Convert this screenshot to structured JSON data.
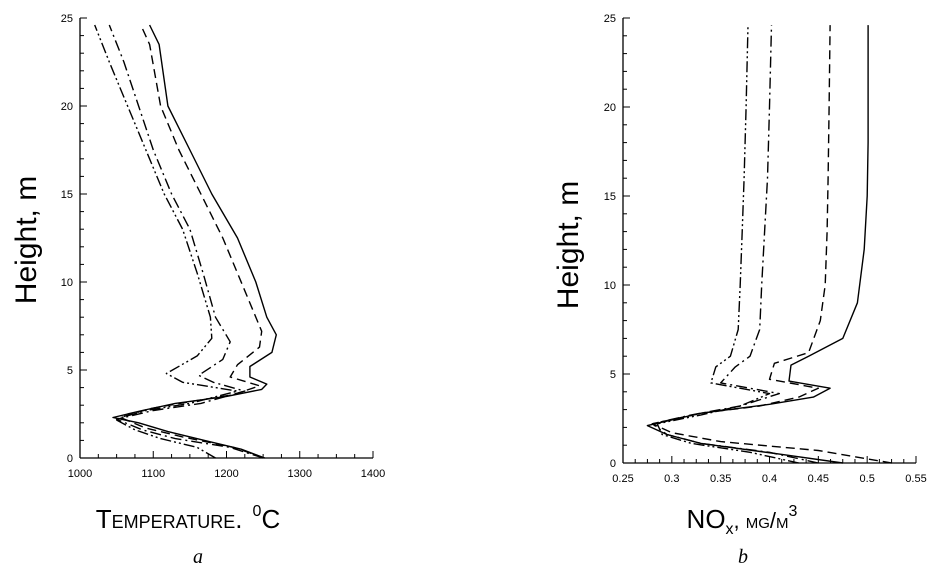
{
  "chart_data": [
    {
      "type": "line",
      "panel_label": "a",
      "xlabel": "Temperature. ⁰C",
      "xlabel_main": "Temperature.",
      "xlabel_sup": "0",
      "xlabel_unit": "C",
      "ylabel": "Height, m",
      "xlim": [
        1000,
        1400
      ],
      "ylim": [
        0,
        25
      ],
      "xticks": [
        1000,
        1100,
        1200,
        1300,
        1400
      ],
      "yticks": [
        0,
        5,
        10,
        15,
        20,
        25
      ],
      "grid": false,
      "series": [
        {
          "style": "solid",
          "color": "#000000",
          "x": [
            1252,
            1220,
            1170,
            1120,
            1080,
            1045,
            1085,
            1130,
            1200,
            1248,
            1255,
            1232,
            1232,
            1262,
            1268,
            1255,
            1240,
            1215,
            1180,
            1150,
            1120,
            1108,
            1095
          ],
          "y": [
            0,
            0.5,
            1.0,
            1.5,
            2.0,
            2.3,
            2.7,
            3.1,
            3.5,
            3.9,
            4.2,
            4.6,
            5.2,
            6.0,
            7.0,
            8.0,
            10.0,
            12.5,
            15.0,
            17.5,
            20.0,
            23.5,
            24.6
          ]
        },
        {
          "style": "dashed",
          "color": "#000000",
          "x": [
            1252,
            1210,
            1140,
            1090,
            1055,
            1095,
            1150,
            1210,
            1245,
            1205,
            1215,
            1245,
            1248,
            1230,
            1195,
            1165,
            1135,
            1110,
            1095,
            1083
          ],
          "y": [
            0,
            0.6,
            1.2,
            1.7,
            2.3,
            2.8,
            3.2,
            3.6,
            4.1,
            4.6,
            5.3,
            6.3,
            7.2,
            9.0,
            12.5,
            15.0,
            17.5,
            20.0,
            23.5,
            24.6
          ]
        },
        {
          "style": "dashdot",
          "color": "#000000",
          "x": [
            1250,
            1205,
            1130,
            1085,
            1050,
            1100,
            1165,
            1225,
            1182,
            1162,
            1195,
            1205,
            1185,
            1168,
            1150,
            1125,
            1100,
            1080,
            1060,
            1040
          ],
          "y": [
            0,
            0.6,
            1.1,
            1.6,
            2.2,
            2.7,
            3.1,
            3.8,
            4.3,
            4.7,
            5.6,
            6.6,
            8.0,
            10.5,
            13.0,
            15.0,
            17.5,
            20.0,
            22.5,
            24.6
          ]
        },
        {
          "style": "dashdotdot",
          "color": "#000000",
          "x": [
            1185,
            1160,
            1110,
            1075,
            1048,
            1090,
            1150,
            1215,
            1140,
            1118,
            1160,
            1180,
            1178,
            1160,
            1140,
            1115,
            1090,
            1065,
            1040,
            1020
          ],
          "y": [
            0,
            0.6,
            1.1,
            1.6,
            2.2,
            2.7,
            3.1,
            3.8,
            4.3,
            4.8,
            5.8,
            6.8,
            8.0,
            10.5,
            13.0,
            15.0,
            17.5,
            20.0,
            22.5,
            24.6
          ]
        }
      ]
    },
    {
      "type": "line",
      "panel_label": "b",
      "xlabel": "NOx,  mg/m3",
      "xlabel_main": "NO",
      "xlabel_sub": "x",
      "xlabel_unit": ",  mg/m",
      "xlabel_sup": "3",
      "ylabel": "Height, m",
      "xlim": [
        0.25,
        0.55
      ],
      "ylim": [
        0,
        25
      ],
      "xticks": [
        "0.25",
        "0.3",
        "0.35",
        "0.4",
        "0.45",
        "0.5",
        "0.55"
      ],
      "yticks": [
        0,
        5,
        10,
        15,
        20,
        25
      ],
      "grid": false,
      "series": [
        {
          "style": "solid",
          "color": "#000000",
          "x": [
            0.475,
            0.41,
            0.33,
            0.295,
            0.275,
            0.33,
            0.4,
            0.445,
            0.462,
            0.42,
            0.422,
            0.44,
            0.475,
            0.49,
            0.497,
            0.5,
            0.501,
            0.501,
            0.501
          ],
          "y": [
            0,
            0.5,
            1.1,
            1.6,
            2.1,
            2.8,
            3.3,
            3.7,
            4.2,
            4.6,
            5.5,
            6.0,
            7.0,
            9.0,
            12.0,
            15.0,
            18.0,
            22.0,
            24.6
          ]
        },
        {
          "style": "dashed",
          "color": "#000000",
          "x": [
            0.525,
            0.45,
            0.35,
            0.3,
            0.28,
            0.33,
            0.39,
            0.43,
            0.45,
            0.4,
            0.405,
            0.44,
            0.452,
            0.457,
            0.459,
            0.46,
            0.461,
            0.462
          ],
          "y": [
            0,
            0.7,
            1.2,
            1.7,
            2.2,
            2.8,
            3.2,
            3.7,
            4.2,
            4.7,
            5.6,
            6.2,
            8.0,
            10.0,
            13.0,
            16.0,
            20.0,
            24.6
          ]
        },
        {
          "style": "dashdot",
          "color": "#000000",
          "x": [
            0.45,
            0.4,
            0.33,
            0.295,
            0.28,
            0.32,
            0.37,
            0.41,
            0.35,
            0.365,
            0.38,
            0.39,
            0.392,
            0.395,
            0.398,
            0.4,
            0.402
          ],
          "y": [
            0,
            0.6,
            1.1,
            1.6,
            2.2,
            2.7,
            3.2,
            3.9,
            4.5,
            5.4,
            6.0,
            7.5,
            10.0,
            13.0,
            16.0,
            20.0,
            24.6
          ]
        },
        {
          "style": "dashdotdot",
          "color": "#000000",
          "x": [
            0.43,
            0.38,
            0.32,
            0.29,
            0.285,
            0.33,
            0.37,
            0.4,
            0.34,
            0.345,
            0.36,
            0.368,
            0.37,
            0.372,
            0.374,
            0.376,
            0.378
          ],
          "y": [
            0,
            0.6,
            1.1,
            1.6,
            2.2,
            2.7,
            3.2,
            3.9,
            4.5,
            5.4,
            6.0,
            7.5,
            10.0,
            13.0,
            16.0,
            20.0,
            24.6
          ]
        }
      ]
    }
  ]
}
